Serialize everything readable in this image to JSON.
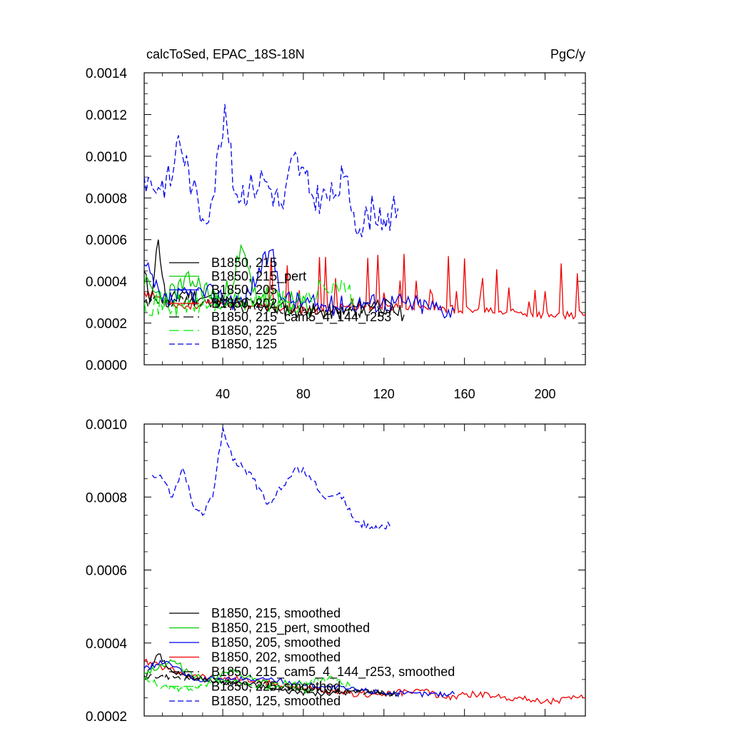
{
  "chart_data": [
    {
      "type": "line",
      "title": "calcToSed, EPAC_18S-18N",
      "units": "PgC/y",
      "xlim": [
        1,
        220
      ],
      "ylim": [
        0.0,
        0.0014
      ],
      "x_ticks": [
        40,
        80,
        120,
        160,
        200
      ],
      "y_ticks": [
        0.0,
        0.0002,
        0.0004,
        0.0006,
        0.0008,
        0.001,
        0.0012,
        0.0014
      ],
      "x_tick_labels": [
        "40",
        "80",
        "120",
        "160",
        "200"
      ],
      "y_tick_labels": [
        "0.0000",
        "0.0002",
        "0.0004",
        "0.0006",
        "0.0008",
        "0.0010",
        "0.0012",
        "0.0014"
      ],
      "legend_position": "lower-left",
      "series": [
        {
          "name": "B1850, 215",
          "color": "#000000",
          "dash": "solid",
          "x_range": [
            1,
            130
          ],
          "anchors": [
            [
              1,
              0.00045
            ],
            [
              4,
              0.0003
            ],
            [
              8,
              0.0006
            ],
            [
              12,
              0.00028
            ],
            [
              20,
              0.00035
            ],
            [
              30,
              0.00032
            ],
            [
              45,
              0.0003
            ],
            [
              60,
              0.00028
            ],
            [
              80,
              0.00026
            ],
            [
              100,
              0.00025
            ],
            [
              115,
              0.0003
            ],
            [
              130,
              0.00024
            ]
          ],
          "noise": 4e-05,
          "seed": 11
        },
        {
          "name": "B1850, 215_pert",
          "color": "#00cc00",
          "dash": "solid",
          "x_range": [
            1,
            85
          ],
          "anchors": [
            [
              1,
              0.00038
            ],
            [
              10,
              0.00032
            ],
            [
              25,
              0.0004
            ],
            [
              40,
              0.0003
            ],
            [
              50,
              0.00055
            ],
            [
              55,
              0.00035
            ],
            [
              70,
              0.0003
            ],
            [
              85,
              0.00028
            ]
          ],
          "noise": 6e-05,
          "seed": 23
        },
        {
          "name": "B1850, 205",
          "color": "#0000ee",
          "dash": "solid",
          "x_range": [
            1,
            155
          ],
          "anchors": [
            [
              1,
              0.00048
            ],
            [
              10,
              0.0003
            ],
            [
              30,
              0.00035
            ],
            [
              50,
              0.0003
            ],
            [
              64,
              0.00055
            ],
            [
              70,
              0.00032
            ],
            [
              90,
              0.00028
            ],
            [
              110,
              0.0003
            ],
            [
              130,
              0.0003
            ],
            [
              155,
              0.00026
            ]
          ],
          "noise": 5e-05,
          "seed": 37
        },
        {
          "name": "B1850, 202",
          "color": "#ee0000",
          "dash": "solid",
          "x_range": [
            1,
            220
          ],
          "anchors": [
            [
              1,
              0.00035
            ],
            [
              20,
              0.00028
            ],
            [
              40,
              0.0003
            ],
            [
              60,
              0.00028
            ],
            [
              80,
              0.00025
            ],
            [
              100,
              0.00028
            ],
            [
              140,
              0.00028
            ],
            [
              160,
              0.00026
            ],
            [
              200,
              0.00024
            ],
            [
              220,
              0.00024
            ]
          ],
          "noise": 2e-05,
          "seed": 53,
          "spikes": 0.00045
        },
        {
          "name": "B1850, 215_cam5_4_144_r253",
          "color": "#000000",
          "dash": "long",
          "x_range": [
            1,
            125
          ],
          "anchors": [
            [
              1,
              0.0003
            ],
            [
              30,
              0.0003
            ],
            [
              60,
              0.00027
            ],
            [
              90,
              0.00026
            ],
            [
              125,
              0.00025
            ]
          ],
          "noise": 3e-05,
          "seed": 61
        },
        {
          "name": "B1850, 225",
          "color": "#00ee00",
          "dash": "long",
          "x_range": [
            1,
            105
          ],
          "anchors": [
            [
              1,
              0.0003
            ],
            [
              20,
              0.00028
            ],
            [
              40,
              0.0003
            ],
            [
              60,
              0.0003
            ],
            [
              80,
              0.0003
            ],
            [
              95,
              0.0004
            ],
            [
              105,
              0.00032
            ]
          ],
          "noise": 6e-05,
          "seed": 71
        },
        {
          "name": "B1850, 125",
          "color": "#0000ee",
          "dash": "dashed",
          "x_range": [
            1,
            127
          ],
          "anchors": [
            [
              1,
              0.0009
            ],
            [
              8,
              0.00085
            ],
            [
              15,
              0.0009
            ],
            [
              18,
              0.0011
            ],
            [
              25,
              0.00085
            ],
            [
              30,
              0.0007
            ],
            [
              35,
              0.0008
            ],
            [
              41,
              0.00125
            ],
            [
              46,
              0.00082
            ],
            [
              55,
              0.00085
            ],
            [
              60,
              0.0009
            ],
            [
              70,
              0.00075
            ],
            [
              75,
              0.001
            ],
            [
              85,
              0.0008
            ],
            [
              95,
              0.0008
            ],
            [
              100,
              0.0009
            ],
            [
              108,
              0.00065
            ],
            [
              115,
              0.00075
            ],
            [
              120,
              0.0007
            ],
            [
              127,
              0.00075
            ]
          ],
          "noise": 8e-05,
          "seed": 83
        }
      ]
    },
    {
      "type": "line",
      "xlim": [
        1,
        220
      ],
      "ylim": [
        0.0002,
        0.001
      ],
      "x_ticks": [
        40,
        80,
        120,
        160,
        200
      ],
      "y_ticks": [
        0.0002,
        0.0004,
        0.0006,
        0.0008,
        0.001
      ],
      "y_tick_labels": [
        "0.0002",
        "0.0004",
        "0.0006",
        "0.0008",
        "0.0010"
      ],
      "legend_position": "lower-left",
      "series": [
        {
          "name": "B1850, 215, smoothed",
          "color": "#000000",
          "dash": "solid",
          "x_range": [
            1,
            128
          ],
          "anchors": [
            [
              1,
              0.0003
            ],
            [
              8,
              0.00037
            ],
            [
              15,
              0.00032
            ],
            [
              30,
              0.0003
            ],
            [
              50,
              0.00029
            ],
            [
              70,
              0.00027
            ],
            [
              90,
              0.00026
            ],
            [
              110,
              0.00027
            ],
            [
              128,
              0.00026
            ]
          ],
          "noise": 8e-06,
          "seed": 101
        },
        {
          "name": "B1850, 215_pert, smoothed",
          "color": "#00cc00",
          "dash": "solid",
          "x_range": [
            1,
            85
          ],
          "anchors": [
            [
              1,
              0.00032
            ],
            [
              15,
              0.00035
            ],
            [
              30,
              0.0003
            ],
            [
              45,
              0.00032
            ],
            [
              55,
              0.0003
            ],
            [
              70,
              0.00028
            ],
            [
              85,
              0.00027
            ]
          ],
          "noise": 1e-05,
          "seed": 113
        },
        {
          "name": "B1850, 205, smoothed",
          "color": "#0000ee",
          "dash": "solid",
          "x_range": [
            1,
            155
          ],
          "anchors": [
            [
              1,
              0.00033
            ],
            [
              12,
              0.00035
            ],
            [
              25,
              0.0003
            ],
            [
              45,
              0.0003
            ],
            [
              65,
              0.0003
            ],
            [
              90,
              0.00028
            ],
            [
              110,
              0.00027
            ],
            [
              130,
              0.00026
            ],
            [
              155,
              0.00026
            ]
          ],
          "noise": 8e-06,
          "seed": 127
        },
        {
          "name": "B1850, 202, smoothed",
          "color": "#ee0000",
          "dash": "solid",
          "x_range": [
            1,
            220
          ],
          "anchors": [
            [
              1,
              0.00035
            ],
            [
              25,
              0.00031
            ],
            [
              50,
              0.0003
            ],
            [
              75,
              0.00028
            ],
            [
              100,
              0.00026
            ],
            [
              120,
              0.00026
            ],
            [
              140,
              0.00027
            ],
            [
              150,
              0.00025
            ],
            [
              165,
              0.00026
            ],
            [
              185,
              0.00025
            ],
            [
              200,
              0.00024
            ],
            [
              220,
              0.00025
            ]
          ],
          "noise": 9e-06,
          "seed": 139
        },
        {
          "name": "B1850, 215_cam5_4_144_r253, smoothed",
          "color": "#000000",
          "dash": "long",
          "x_range": [
            1,
            125
          ],
          "anchors": [
            [
              1,
              0.00031
            ],
            [
              30,
              0.0003
            ],
            [
              60,
              0.00028
            ],
            [
              90,
              0.00027
            ],
            [
              125,
              0.00026
            ]
          ],
          "noise": 7e-06,
          "seed": 149
        },
        {
          "name": "B1850, 225, smoothed",
          "color": "#00ee00",
          "dash": "long",
          "x_range": [
            1,
            105
          ],
          "anchors": [
            [
              1,
              0.0003
            ],
            [
              10,
              0.00028
            ],
            [
              25,
              0.00027
            ],
            [
              40,
              0.0003
            ],
            [
              55,
              0.00028
            ],
            [
              75,
              0.00029
            ],
            [
              95,
              0.0003
            ],
            [
              105,
              0.00028
            ]
          ],
          "noise": 1e-05,
          "seed": 157
        },
        {
          "name": "B1850, 125, smoothed",
          "color": "#0000ee",
          "dash": "dashed",
          "x_range": [
            5,
            123
          ],
          "anchors": [
            [
              5,
              0.00086
            ],
            [
              10,
              0.00085
            ],
            [
              15,
              0.0008
            ],
            [
              20,
              0.00088
            ],
            [
              25,
              0.00078
            ],
            [
              30,
              0.00075
            ],
            [
              35,
              0.0008
            ],
            [
              40,
              0.00099
            ],
            [
              45,
              0.0009
            ],
            [
              50,
              0.00088
            ],
            [
              55,
              0.00085
            ],
            [
              62,
              0.00078
            ],
            [
              70,
              0.00083
            ],
            [
              75,
              0.00087
            ],
            [
              80,
              0.00088
            ],
            [
              90,
              0.0008
            ],
            [
              100,
              0.0008
            ],
            [
              105,
              0.00074
            ],
            [
              115,
              0.00071
            ],
            [
              123,
              0.00072
            ]
          ],
          "noise": 1.2e-05,
          "seed": 167
        }
      ]
    }
  ]
}
